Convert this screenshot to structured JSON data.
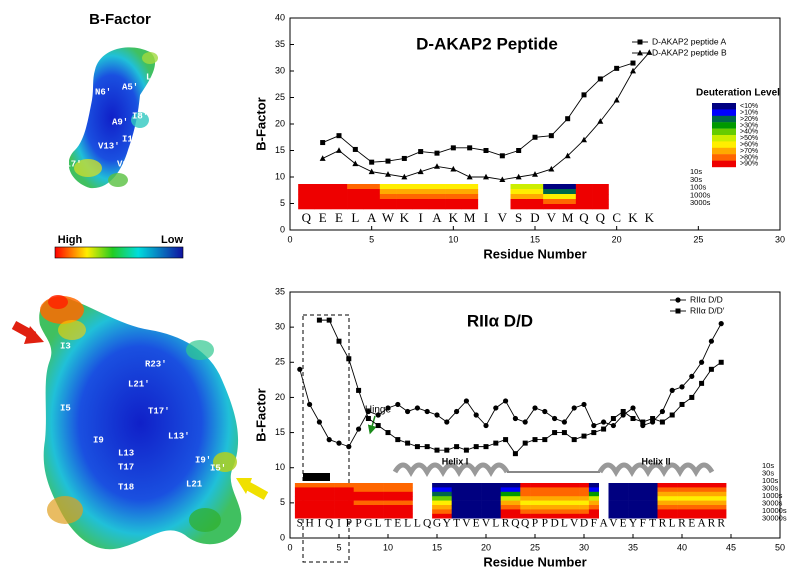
{
  "left_panel": {
    "title": "B-Factor",
    "peptide_labels": [
      "L3′",
      "N6′",
      "A5′",
      "I8′",
      "A9′",
      "I12′",
      "V13′",
      "M17′",
      "V16′"
    ],
    "colorbar": {
      "high": "High",
      "low": "Low"
    },
    "dimer_labels": [
      "I3",
      "R23′",
      "L21′",
      "I5",
      "T17′",
      "L13′",
      "I9",
      "L13",
      "I9′",
      "T17",
      "I5′",
      "T18",
      "L21"
    ]
  },
  "chart_data": [
    {
      "type": "line",
      "title": "D-AKAP2 Peptide",
      "x_label": "Residue Number",
      "y_label": "B-Factor",
      "xlim": [
        0,
        30
      ],
      "xticks": [
        0,
        5,
        10,
        15,
        20,
        25,
        30
      ],
      "ylim": [
        0,
        40
      ],
      "yticks": [
        0,
        5,
        10,
        15,
        20,
        25,
        30,
        35,
        40
      ],
      "legend": "upper right",
      "series": [
        {
          "name": "D-AKAP2 peptide A",
          "color": "#000000",
          "marker": "square",
          "x": [
            2,
            3,
            4,
            5,
            6,
            7,
            8,
            9,
            10,
            11,
            12,
            13,
            14,
            15,
            16,
            17,
            18,
            19,
            20,
            21
          ],
          "values": [
            16.5,
            17.8,
            15.2,
            12.8,
            13,
            13.5,
            14.8,
            14.5,
            15.5,
            15.5,
            15,
            14,
            15,
            17.5,
            17.8,
            21,
            25.5,
            28.5,
            30.5,
            31.5
          ]
        },
        {
          "name": "D-AKAP2 peptide B",
          "color": "#000000",
          "marker": "triangle",
          "x": [
            2,
            3,
            4,
            5,
            6,
            7,
            8,
            9,
            10,
            11,
            12,
            13,
            14,
            15,
            16,
            17,
            18,
            19,
            20,
            21,
            22
          ],
          "values": [
            13.5,
            15,
            12.5,
            11,
            10.5,
            10,
            11,
            12,
            11.5,
            10,
            10,
            9.5,
            10,
            10.5,
            11.5,
            14,
            17,
            20.5,
            24.5,
            30,
            33.5
          ]
        }
      ],
      "sequence": [
        "Q",
        "E",
        "E",
        "L",
        "A",
        "W",
        "K",
        "I",
        "A",
        "K",
        "M",
        "I",
        "V",
        "S",
        "D",
        "V",
        "M",
        "Q",
        "Q",
        "C",
        "K",
        "K"
      ],
      "heatmap": {
        "time_labels": [
          "10s",
          "30s",
          "100s",
          "1000s",
          "3000s"
        ],
        "levels": [
          [
            9,
            9,
            9,
            9,
            9
          ],
          [
            9,
            9,
            9,
            9,
            9
          ],
          [
            9,
            9,
            9,
            9,
            9
          ],
          [
            8,
            9,
            9,
            9,
            9
          ],
          [
            8,
            9,
            9,
            9,
            9
          ],
          [
            6,
            7,
            8,
            9,
            9
          ],
          [
            6,
            7,
            8,
            9,
            9
          ],
          [
            6,
            7,
            8,
            9,
            9
          ],
          [
            6,
            7,
            8,
            9,
            9
          ],
          [
            6,
            7,
            8,
            9,
            9
          ],
          [
            6,
            7,
            8,
            9,
            9
          ],
          null,
          null,
          [
            5,
            6,
            7,
            9,
            9
          ],
          [
            5,
            6,
            7,
            9,
            9
          ],
          [
            0,
            2,
            6,
            8,
            9
          ],
          [
            0,
            2,
            6,
            8,
            9
          ],
          [
            9,
            9,
            9,
            9,
            9
          ],
          [
            9,
            9,
            9,
            9,
            9
          ],
          null,
          null,
          null
        ]
      },
      "deuteration_legend": {
        "title": "Deuteration Level",
        "labels": [
          "<10%",
          ">10%",
          ">20%",
          ">30%",
          ">40%",
          ">50%",
          ">60%",
          ">70%",
          ">80%",
          ">90%"
        ],
        "colors": [
          "#000080",
          "#0000ff",
          "#00664a",
          "#009900",
          "#66cc00",
          "#ccee00",
          "#ffee00",
          "#ffaa00",
          "#ff6600",
          "#ee0000"
        ]
      }
    },
    {
      "type": "line",
      "title": "RIIα D/D",
      "x_label": "Residue Number",
      "y_label": "B-Factor",
      "xlim": [
        0,
        50
      ],
      "xticks": [
        0,
        5,
        10,
        15,
        20,
        25,
        30,
        35,
        40,
        45,
        50
      ],
      "ylim": [
        0,
        35
      ],
      "yticks": [
        0,
        5,
        10,
        15,
        20,
        25,
        30,
        35
      ],
      "legend": "upper right",
      "series": [
        {
          "name": "RIIα D/D",
          "color": "#000000",
          "marker": "circle",
          "x": [
            1,
            2,
            3,
            4,
            5,
            6,
            7,
            8,
            9,
            10,
            11,
            12,
            13,
            14,
            15,
            16,
            17,
            18,
            19,
            20,
            21,
            22,
            23,
            24,
            25,
            26,
            27,
            28,
            29,
            30,
            31,
            32,
            33,
            34,
            35,
            36,
            37,
            38,
            39,
            40,
            41,
            42,
            43,
            44
          ],
          "values": [
            24,
            19,
            16.5,
            14,
            13.5,
            13,
            15.5,
            18,
            17.5,
            18.5,
            19,
            18,
            18.5,
            18,
            17.5,
            16.5,
            18,
            19.5,
            17.5,
            16,
            18.5,
            19.5,
            17,
            16.5,
            18.5,
            18,
            17,
            16.5,
            18.5,
            19,
            16,
            16.5,
            16,
            17.5,
            18.5,
            16,
            16.5,
            18,
            21,
            21.5,
            23,
            25,
            28,
            30.5
          ]
        },
        {
          "name": "RIIα D/D′",
          "color": "#000000",
          "marker": "square",
          "x": [
            3,
            4,
            5,
            6,
            7,
            8,
            9,
            10,
            11,
            12,
            13,
            14,
            15,
            16,
            17,
            18,
            19,
            20,
            21,
            22,
            23,
            24,
            25,
            26,
            27,
            28,
            29,
            30,
            31,
            32,
            33,
            34,
            35,
            36,
            37,
            38,
            39,
            40,
            41,
            42,
            43,
            44
          ],
          "values": [
            31,
            31,
            28,
            25.5,
            21,
            17,
            16,
            15,
            14,
            13.5,
            13,
            13,
            12.5,
            12.5,
            13,
            12.5,
            13,
            13,
            13.5,
            14,
            12,
            13.5,
            14,
            14,
            15,
            15,
            14,
            14.5,
            15,
            15.5,
            17,
            18,
            17,
            16.5,
            17,
            16.5,
            17.5,
            19,
            20,
            22,
            24,
            25
          ]
        }
      ],
      "sequence": [
        "S",
        "H",
        "I",
        "Q",
        "I",
        "P",
        "P",
        "G",
        "L",
        "T",
        "E",
        "L",
        "L",
        "Q",
        "G",
        "Y",
        "T",
        "V",
        "E",
        "V",
        "L",
        "R",
        "Q",
        "Q",
        "P",
        "P",
        "D",
        "L",
        "V",
        "D",
        "F",
        "A",
        "V",
        "E",
        "Y",
        "F",
        "T",
        "R",
        "L",
        "R",
        "E",
        "A",
        "R",
        "R"
      ],
      "heatmap": {
        "time_labels": [
          "10s",
          "30s",
          "100s",
          "300s",
          "1000s",
          "3000s",
          "10000s",
          "30000s"
        ],
        "levels": [
          [
            8,
            9,
            9,
            9,
            9,
            9,
            9,
            9
          ],
          [
            8,
            9,
            9,
            9,
            9,
            9,
            9,
            9
          ],
          [
            8,
            9,
            9,
            9,
            9,
            9,
            9,
            9
          ],
          [
            8,
            9,
            9,
            9,
            9,
            9,
            9,
            9
          ],
          [
            8,
            9,
            9,
            9,
            9,
            9,
            9,
            9
          ],
          [
            8,
            9,
            9,
            9,
            9,
            9,
            9,
            9
          ],
          [
            8,
            8,
            9,
            9,
            8,
            9,
            9,
            9
          ],
          [
            8,
            8,
            9,
            9,
            8,
            9,
            9,
            9
          ],
          [
            8,
            8,
            9,
            9,
            8,
            9,
            9,
            9
          ],
          [
            8,
            8,
            9,
            9,
            8,
            9,
            9,
            9
          ],
          [
            8,
            8,
            9,
            9,
            8,
            9,
            9,
            9
          ],
          [
            8,
            8,
            9,
            9,
            8,
            9,
            9,
            9
          ],
          null,
          null,
          [
            0,
            1,
            2,
            4,
            6,
            7,
            8,
            9
          ],
          [
            0,
            1,
            2,
            4,
            6,
            7,
            8,
            9
          ],
          [
            0,
            0,
            0,
            0,
            0,
            0,
            0,
            0
          ],
          [
            0,
            0,
            0,
            0,
            0,
            0,
            0,
            0
          ],
          [
            0,
            0,
            0,
            0,
            0,
            0,
            0,
            0
          ],
          [
            0,
            0,
            0,
            0,
            0,
            0,
            0,
            0
          ],
          [
            0,
            0,
            0,
            0,
            0,
            0,
            0,
            0
          ],
          [
            0,
            1,
            3,
            5,
            7,
            8,
            9,
            9
          ],
          [
            0,
            1,
            3,
            5,
            7,
            8,
            9,
            9
          ],
          [
            9,
            8,
            8,
            7,
            6,
            7,
            8,
            9
          ],
          [
            9,
            8,
            8,
            7,
            6,
            7,
            8,
            9
          ],
          [
            9,
            8,
            8,
            7,
            6,
            7,
            8,
            9
          ],
          [
            9,
            8,
            8,
            7,
            6,
            7,
            8,
            9
          ],
          [
            9,
            8,
            8,
            7,
            6,
            7,
            8,
            9
          ],
          [
            9,
            8,
            8,
            7,
            6,
            7,
            8,
            9
          ],
          [
            9,
            8,
            8,
            7,
            6,
            7,
            8,
            9
          ],
          [
            0,
            1,
            3,
            5,
            7,
            8,
            9,
            9
          ],
          null,
          [
            0,
            0,
            0,
            0,
            0,
            0,
            0,
            0
          ],
          [
            0,
            0,
            0,
            0,
            0,
            0,
            0,
            0
          ],
          [
            0,
            0,
            0,
            0,
            0,
            0,
            0,
            0
          ],
          [
            0,
            0,
            0,
            0,
            0,
            0,
            0,
            0
          ],
          [
            0,
            0,
            0,
            0,
            0,
            0,
            0,
            0
          ],
          [
            9,
            8,
            7,
            6,
            7,
            8,
            9,
            9
          ],
          [
            9,
            8,
            7,
            6,
            7,
            8,
            9,
            9
          ],
          [
            9,
            8,
            7,
            6,
            7,
            8,
            9,
            9
          ],
          [
            9,
            8,
            7,
            6,
            7,
            8,
            9,
            9
          ],
          [
            9,
            8,
            7,
            6,
            7,
            8,
            9,
            9
          ],
          [
            9,
            8,
            7,
            6,
            7,
            8,
            9,
            9
          ],
          [
            9,
            8,
            7,
            6,
            7,
            8,
            9,
            9
          ]
        ]
      },
      "annotations": {
        "hinge": "Hinge",
        "helix_1": "Helix I",
        "helix_2": "Helix II"
      }
    }
  ]
}
